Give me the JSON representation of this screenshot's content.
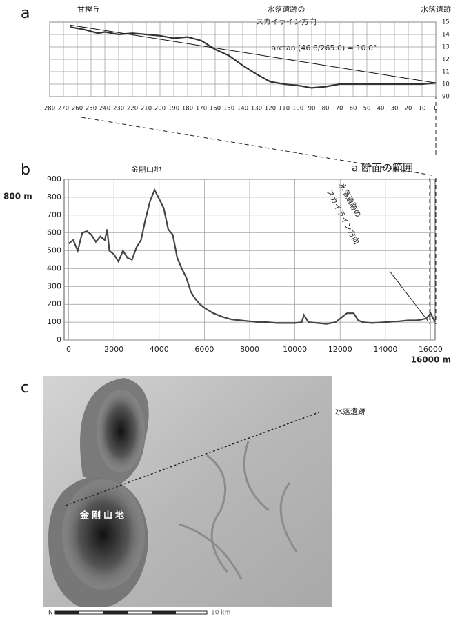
{
  "panel_labels": [
    "a",
    "b",
    "c"
  ],
  "range_note": "a 断面の範囲",
  "chart_data": [
    {
      "type": "line",
      "annotations": [
        "甘樫丘",
        "水落遺跡の",
        "スカイライン方向",
        "水落遺跡",
        "arctan (46.6/265.0) = 10.0°"
      ],
      "x": [
        265,
        255,
        245,
        240,
        230,
        220,
        210,
        200,
        190,
        180,
        170,
        160,
        150,
        140,
        130,
        120,
        110,
        100,
        90,
        80,
        70,
        60,
        50,
        40,
        30,
        20,
        10,
        0
      ],
      "series": [
        {
          "color": "#333333",
          "values": [
            146,
            144,
            141,
            142,
            140,
            141,
            140,
            139,
            137,
            138,
            135,
            128,
            123,
            115,
            108,
            102,
            100,
            99,
            97,
            98,
            100,
            100,
            100,
            100,
            100,
            100,
            100,
            101
          ]
        }
      ],
      "reference_line": {
        "x": [
          265,
          0
        ],
        "values": [
          147.6,
          101
        ]
      },
      "xlim": [
        280,
        0
      ],
      "xticks": [
        280,
        270,
        260,
        250,
        240,
        230,
        220,
        210,
        200,
        190,
        180,
        170,
        160,
        150,
        140,
        130,
        120,
        110,
        100,
        90,
        80,
        70,
        60,
        50,
        40,
        30,
        20,
        10,
        0
      ],
      "ylim": [
        90,
        150
      ],
      "yticks": [
        {
          "value": 150,
          "label": "15"
        },
        {
          "value": 140,
          "label": "14"
        },
        {
          "value": 130,
          "label": "13"
        },
        {
          "value": 120,
          "label": "12"
        },
        {
          "value": 110,
          "label": "11"
        },
        {
          "value": 100,
          "label": "10"
        },
        90
      ],
      "grid": true
    },
    {
      "type": "line",
      "annotations": [
        "金剛山地",
        "800 m",
        "16000 m",
        "水落遺跡の",
        "スカイライン方向"
      ],
      "x": [
        0,
        200,
        400,
        600,
        800,
        1000,
        1200,
        1400,
        1600,
        1700,
        1800,
        2000,
        2200,
        2400,
        2600,
        2800,
        3000,
        3200,
        3400,
        3600,
        3800,
        4000,
        4200,
        4400,
        4600,
        4800,
        5000,
        5200,
        5400,
        5600,
        5800,
        6000,
        6400,
        6800,
        7200,
        7600,
        8000,
        8400,
        8800,
        9200,
        9600,
        10000,
        10300,
        10400,
        10600,
        11000,
        11400,
        11800,
        12000,
        12300,
        12600,
        12800,
        13000,
        13400,
        14000,
        14600,
        15000,
        15400,
        15800,
        16000,
        16200
      ],
      "series": [
        {
          "color": "#444444",
          "values": [
            540,
            560,
            500,
            600,
            610,
            590,
            550,
            580,
            560,
            620,
            500,
            480,
            440,
            500,
            460,
            450,
            520,
            560,
            680,
            780,
            840,
            790,
            740,
            620,
            590,
            460,
            400,
            350,
            270,
            230,
            200,
            180,
            150,
            130,
            115,
            110,
            105,
            100,
            100,
            95,
            95,
            95,
            100,
            140,
            100,
            95,
            90,
            100,
            120,
            150,
            150,
            110,
            100,
            95,
            100,
            105,
            110,
            110,
            120,
            150,
            100
          ]
        }
      ],
      "xlim": [
        -200,
        16200
      ],
      "xticks": [
        0,
        2000,
        4000,
        6000,
        8000,
        10000,
        12000,
        14000,
        16000
      ],
      "ylim": [
        0,
        900
      ],
      "yticks": [
        0,
        100,
        200,
        300,
        400,
        500,
        600,
        700,
        800,
        900
      ],
      "grid": true
    }
  ],
  "map": {
    "labels": [
      "水落遺跡",
      "金剛山地",
      "N",
      "10 km"
    ]
  }
}
